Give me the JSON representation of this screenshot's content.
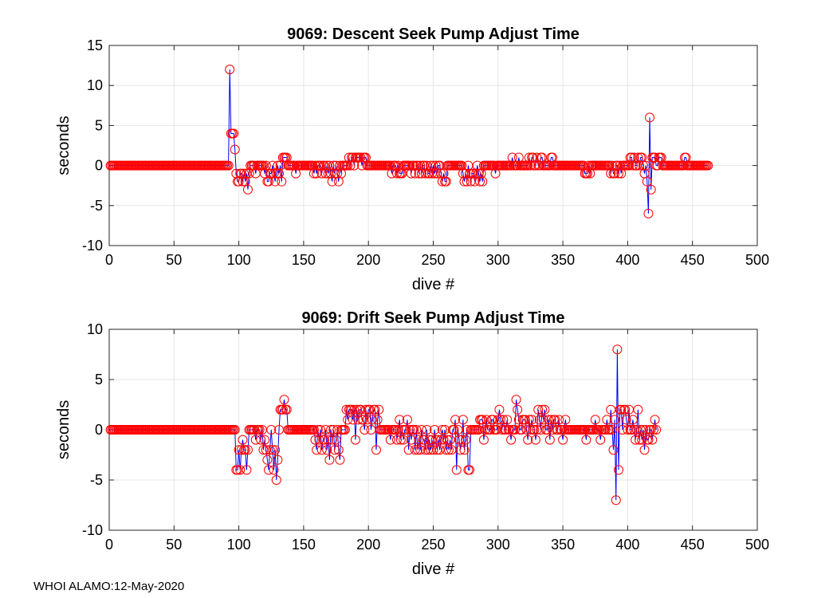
{
  "footer": "WHOI ALAMO:12-May-2020",
  "colors": {
    "line": "#0000ff",
    "marker": "#ff0000",
    "grid": "#e6e6e6",
    "axis": "#262626"
  },
  "chart_data": [
    {
      "type": "line",
      "title": "9069: Descent Seek Pump Adjust Time",
      "xlabel": "dive #",
      "ylabel": "seconds",
      "xlim": [
        0,
        500
      ],
      "ylim": [
        -10,
        15
      ],
      "xticks": [
        0,
        50,
        100,
        150,
        200,
        250,
        300,
        350,
        400,
        450,
        500
      ],
      "yticks": [
        -10,
        -5,
        0,
        5,
        10,
        15
      ],
      "grid": true,
      "legend": "none",
      "series": [
        {
          "marker": "circle",
          "markers_only_from_x": 0,
          "x_start": 1,
          "values": [
            0,
            0,
            0,
            0,
            0,
            0,
            0,
            0,
            0,
            0,
            0,
            0,
            0,
            0,
            0,
            0,
            0,
            0,
            0,
            0,
            0,
            0,
            0,
            0,
            0,
            0,
            0,
            0,
            0,
            0,
            0,
            0,
            0,
            0,
            0,
            0,
            0,
            0,
            0,
            0,
            0,
            0,
            0,
            0,
            0,
            0,
            0,
            0,
            0,
            0,
            0,
            0,
            0,
            0,
            0,
            0,
            0,
            0,
            0,
            0,
            0,
            0,
            0,
            0,
            0,
            0,
            0,
            0,
            0,
            0,
            0,
            0,
            0,
            0,
            0,
            0,
            0,
            0,
            0,
            0,
            0,
            0,
            0,
            0,
            0,
            0,
            0,
            0,
            0,
            0,
            0,
            0,
            12,
            4,
            4,
            4,
            2,
            -1,
            -2,
            -2,
            -1,
            -1,
            -2,
            -1,
            -2,
            -1,
            -3,
            -1,
            0,
            0,
            0,
            0,
            -1,
            0,
            0,
            0,
            0,
            0,
            0,
            -1,
            0,
            -2,
            -2,
            -1,
            -1,
            0,
            -1,
            -2,
            -1,
            0,
            -1,
            0,
            -2,
            1,
            1,
            1,
            1,
            0,
            0,
            0,
            0,
            0,
            0,
            -1,
            0,
            0,
            0,
            0,
            0,
            0,
            0,
            0,
            0,
            0,
            0,
            0,
            0,
            -1,
            0,
            -1,
            0,
            0,
            0,
            -1,
            0,
            0,
            -1,
            0,
            -1,
            0,
            -1,
            -2,
            0,
            -1,
            0,
            -1,
            -2,
            0,
            -1,
            0,
            0,
            0,
            0,
            0,
            1,
            0,
            1,
            1,
            0,
            1,
            1,
            1,
            1,
            1,
            0,
            1,
            1,
            1,
            0,
            0,
            0,
            0,
            0,
            0,
            0,
            0,
            0,
            0,
            0,
            0,
            0,
            0,
            0,
            0,
            0,
            0,
            0,
            -1,
            0,
            0,
            0,
            -1,
            0,
            -1,
            -1,
            -1,
            0,
            0,
            0,
            0,
            0,
            0,
            -1,
            0,
            0,
            -1,
            0,
            0,
            -1,
            0,
            -1,
            0,
            0,
            -1,
            0,
            -1,
            -1,
            0,
            -1,
            0,
            -1,
            0,
            -1,
            0,
            0,
            -1,
            -2,
            -1,
            -2,
            -2,
            0,
            0,
            0,
            0,
            0,
            0,
            0,
            0,
            0,
            0,
            0,
            0,
            -1,
            -2,
            -1,
            -2,
            0,
            -1,
            -2,
            -1,
            -1,
            -2,
            -1,
            0,
            -1,
            -2,
            -1,
            -2,
            0,
            0,
            0,
            0,
            0,
            0,
            0,
            0,
            0,
            -1,
            0,
            0,
            0,
            0,
            0,
            0,
            0,
            0,
            0,
            0,
            0,
            0,
            1,
            0,
            0,
            0,
            0,
            1,
            0,
            0,
            0,
            0,
            0,
            0,
            0,
            1,
            0,
            1,
            1,
            0,
            0,
            1,
            0,
            0,
            1,
            1,
            0,
            0,
            0,
            0,
            0,
            0,
            1,
            1,
            0,
            0,
            0,
            0,
            0,
            0,
            0,
            0,
            0,
            0,
            0,
            0,
            0,
            0,
            0,
            0,
            0,
            0,
            0,
            0,
            0,
            0,
            0,
            0,
            -1,
            -1,
            -1,
            0,
            -1,
            0,
            0,
            0,
            0,
            0,
            0,
            0,
            0,
            0,
            0,
            0,
            0,
            0,
            0,
            0,
            -1,
            0,
            -1,
            -1,
            0,
            0,
            -1,
            0,
            -1,
            0,
            0,
            0,
            0,
            0,
            0,
            1,
            1,
            0,
            1,
            0,
            0,
            1,
            0,
            1,
            1,
            0,
            -1,
            0,
            -2,
            -6,
            6,
            -3,
            1,
            1,
            1,
            0,
            0,
            1,
            1,
            1,
            0,
            0,
            0,
            0,
            0,
            0,
            0,
            0,
            0,
            0,
            0,
            0,
            0,
            0,
            0,
            0,
            0,
            1,
            1,
            0,
            0,
            0,
            0,
            0,
            0,
            0,
            0,
            0,
            0,
            0,
            0,
            0,
            0,
            0,
            0,
            0
          ]
        }
      ]
    },
    {
      "type": "line",
      "title": "9069: Drift Seek Pump Adjust Time",
      "xlabel": "dive #",
      "ylabel": "seconds",
      "xlim": [
        0,
        500
      ],
      "ylim": [
        -10,
        10
      ],
      "xticks": [
        0,
        50,
        100,
        150,
        200,
        250,
        300,
        350,
        400,
        450,
        500
      ],
      "yticks": [
        -10,
        -5,
        0,
        5,
        10
      ],
      "grid": true,
      "legend": "none",
      "series": [
        {
          "marker": "circle",
          "x_start": 1,
          "values": [
            0,
            0,
            0,
            0,
            0,
            0,
            0,
            0,
            0,
            0,
            0,
            0,
            0,
            0,
            0,
            0,
            0,
            0,
            0,
            0,
            0,
            0,
            0,
            0,
            0,
            0,
            0,
            0,
            0,
            0,
            0,
            0,
            0,
            0,
            0,
            0,
            0,
            0,
            0,
            0,
            0,
            0,
            0,
            0,
            0,
            0,
            0,
            0,
            0,
            0,
            0,
            0,
            0,
            0,
            0,
            0,
            0,
            0,
            0,
            0,
            0,
            0,
            0,
            0,
            0,
            0,
            0,
            0,
            0,
            0,
            0,
            0,
            0,
            0,
            0,
            0,
            0,
            0,
            0,
            0,
            0,
            0,
            0,
            0,
            0,
            0,
            0,
            0,
            0,
            0,
            0,
            0,
            0,
            0,
            0,
            0,
            0,
            -4,
            -4,
            -2,
            -4,
            -2,
            -1,
            -2,
            -2,
            -4,
            -2,
            0,
            0,
            0,
            0,
            0,
            -1,
            0,
            0,
            0,
            -1,
            0,
            -2,
            -1,
            -2,
            -3,
            -4,
            -2,
            0,
            -2,
            -4,
            -2,
            -5,
            -3,
            0,
            2,
            2,
            2,
            3,
            2,
            2,
            0,
            0,
            0,
            0,
            0,
            0,
            0,
            0,
            0,
            0,
            0,
            0,
            0,
            0,
            0,
            0,
            0,
            0,
            0,
            0,
            0,
            -1,
            -2,
            0,
            -1,
            0,
            -2,
            -1,
            -1,
            0,
            -2,
            -1,
            -3,
            0,
            -1,
            0,
            -2,
            -1,
            0,
            -2,
            -3,
            0,
            0,
            0,
            0,
            2,
            1,
            2,
            2,
            2,
            1,
            2,
            -1,
            2,
            1,
            2,
            2,
            1,
            1,
            0,
            2,
            1,
            2,
            2,
            0,
            1,
            2,
            2,
            -2,
            1,
            2,
            0,
            0,
            0,
            0,
            0,
            0,
            0,
            0,
            -1,
            0,
            0,
            0,
            0,
            -1,
            0,
            1,
            -1,
            0,
            -1,
            0,
            0,
            1,
            -2,
            0,
            -1,
            0,
            0,
            -2,
            0,
            -2,
            -1,
            -2,
            0,
            -1,
            -1,
            -2,
            0,
            -2,
            -1,
            -2,
            -1,
            -2,
            0,
            -1,
            -2,
            -1,
            -2,
            -1,
            0,
            -1,
            0,
            -2,
            -1,
            -2,
            -1,
            -2,
            0,
            0,
            1,
            -4,
            0,
            -1,
            -2,
            -1,
            1,
            -2,
            -1,
            0,
            -4,
            -4,
            0,
            0,
            0,
            0,
            0,
            0,
            0,
            1,
            1,
            1,
            -1,
            0,
            1,
            0,
            0,
            0,
            1,
            1,
            0,
            0,
            0,
            1,
            2,
            1,
            0,
            1,
            0,
            0,
            1,
            0,
            0,
            -1,
            0,
            0,
            0,
            3,
            2,
            1,
            0,
            0,
            1,
            1,
            1,
            0,
            -1,
            1,
            0,
            1,
            0,
            0,
            -1,
            0,
            2,
            1,
            0,
            2,
            1,
            2,
            0,
            0,
            1,
            -1,
            1,
            0,
            1,
            1,
            0,
            0,
            1,
            0,
            0,
            -1,
            0,
            1,
            0,
            0,
            0,
            0,
            0,
            0,
            0,
            0,
            0,
            0,
            0,
            0,
            0,
            0,
            0,
            -1,
            0,
            0,
            0,
            0,
            0,
            0,
            1,
            0,
            0,
            0,
            -1,
            0,
            0,
            0,
            0,
            1,
            0,
            0,
            2,
            0,
            -2,
            1,
            -7,
            8,
            -4,
            2,
            2,
            0,
            2,
            2,
            1,
            0,
            2,
            0,
            0,
            1,
            0,
            -1,
            0,
            2,
            -1,
            0,
            -1,
            0,
            -2,
            0,
            -1,
            -1,
            0,
            0,
            -1,
            0,
            1,
            0
          ]
        }
      ]
    }
  ]
}
